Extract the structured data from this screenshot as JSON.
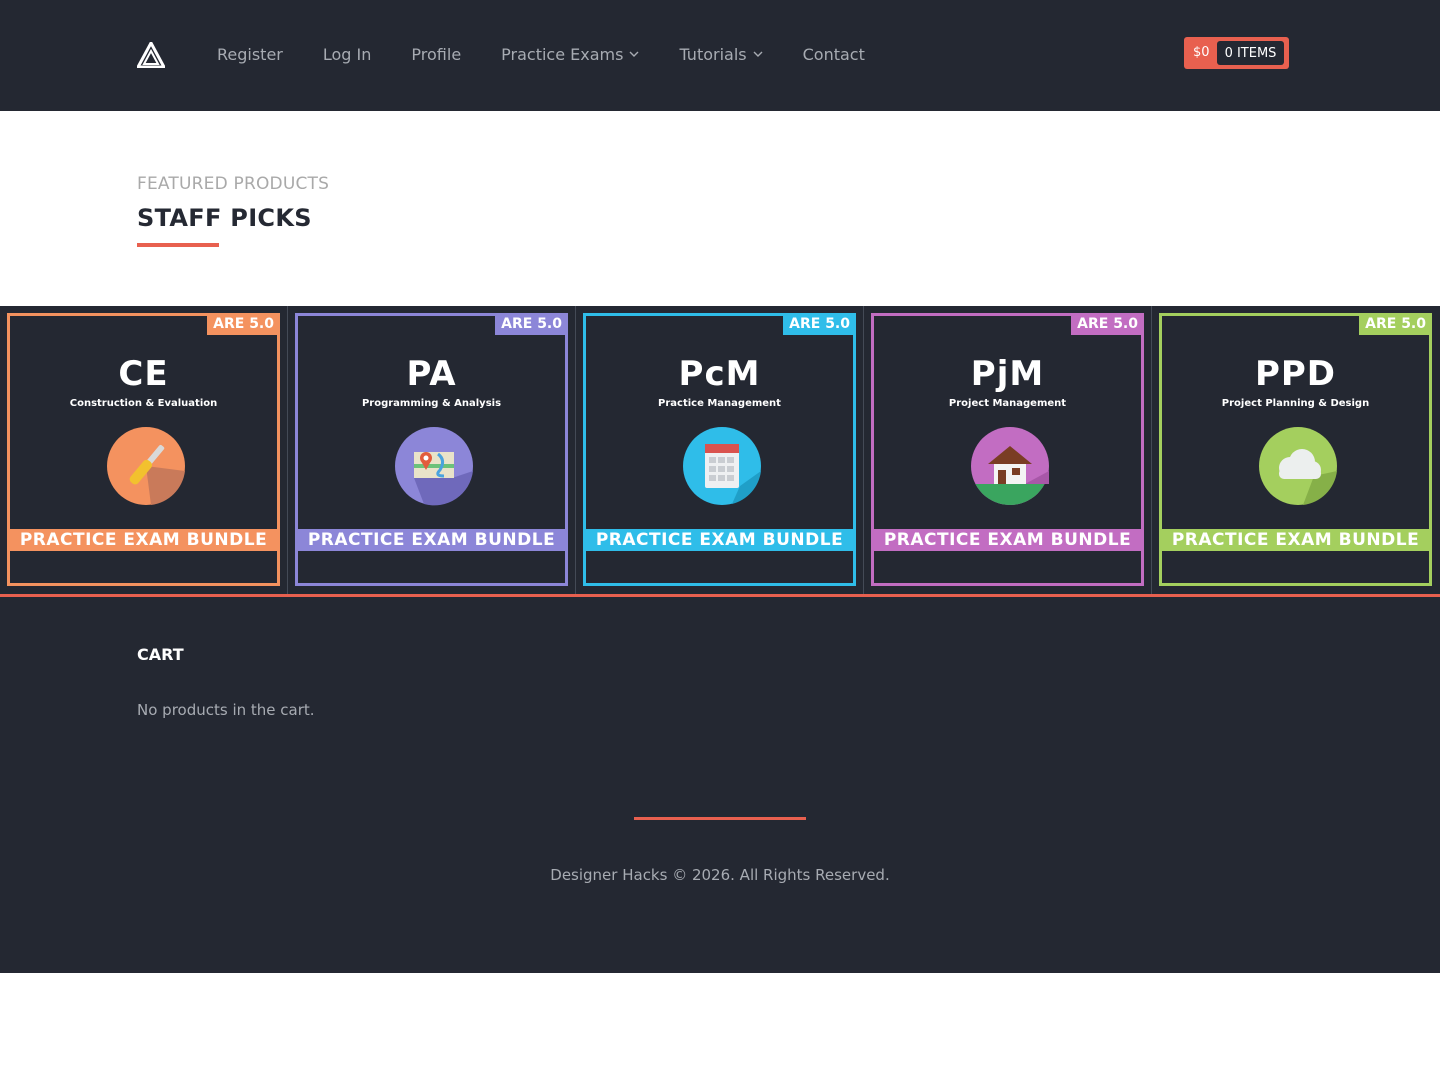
{
  "header": {
    "logo": "Designer Hacks logo",
    "nav": [
      {
        "label": "Register",
        "has_dropdown": false
      },
      {
        "label": "Log In",
        "has_dropdown": false
      },
      {
        "label": "Profile",
        "has_dropdown": false
      },
      {
        "label": "Practice Exams",
        "has_dropdown": true
      },
      {
        "label": "Tutorials",
        "has_dropdown": true
      },
      {
        "label": "Contact",
        "has_dropdown": false
      }
    ],
    "cart": {
      "price": "$0",
      "items": "0 ITEMS"
    }
  },
  "featured": {
    "kicker": "FEATURED PRODUCTS",
    "title": "STAFF PICKS"
  },
  "products": [
    {
      "edition": "ARE 5.0",
      "code": "CE",
      "name": "Construction & Evaluation",
      "bundle": "PRACTICE EXAM BUNDLE",
      "color": "#f4925f",
      "icon": "screwdriver-icon"
    },
    {
      "edition": "ARE 5.0",
      "code": "PA",
      "name": "Programming & Analysis",
      "bundle": "PRACTICE EXAM BUNDLE",
      "color": "#8c86d8",
      "icon": "map-pin-icon"
    },
    {
      "edition": "ARE 5.0",
      "code": "PcM",
      "name": "Practice Management",
      "bundle": "PRACTICE EXAM BUNDLE",
      "color": "#2fbde9",
      "icon": "calendar-icon"
    },
    {
      "edition": "ARE 5.0",
      "code": "PjM",
      "name": "Project Management",
      "bundle": "PRACTICE EXAM BUNDLE",
      "color": "#c26dc2",
      "icon": "house-icon"
    },
    {
      "edition": "ARE 5.0",
      "code": "PPD",
      "name": "Project Planning & Design",
      "bundle": "PRACTICE EXAM BUNDLE",
      "color": "#a4cf5e",
      "icon": "cloud-icon"
    }
  ],
  "cart_widget": {
    "heading": "CART",
    "empty_text": "No products in the cart."
  },
  "footer": {
    "copyright": "Designer Hacks © 2026. All Rights Reserved."
  },
  "colors": {
    "accent": "#e8604f",
    "dark": "#242832"
  }
}
